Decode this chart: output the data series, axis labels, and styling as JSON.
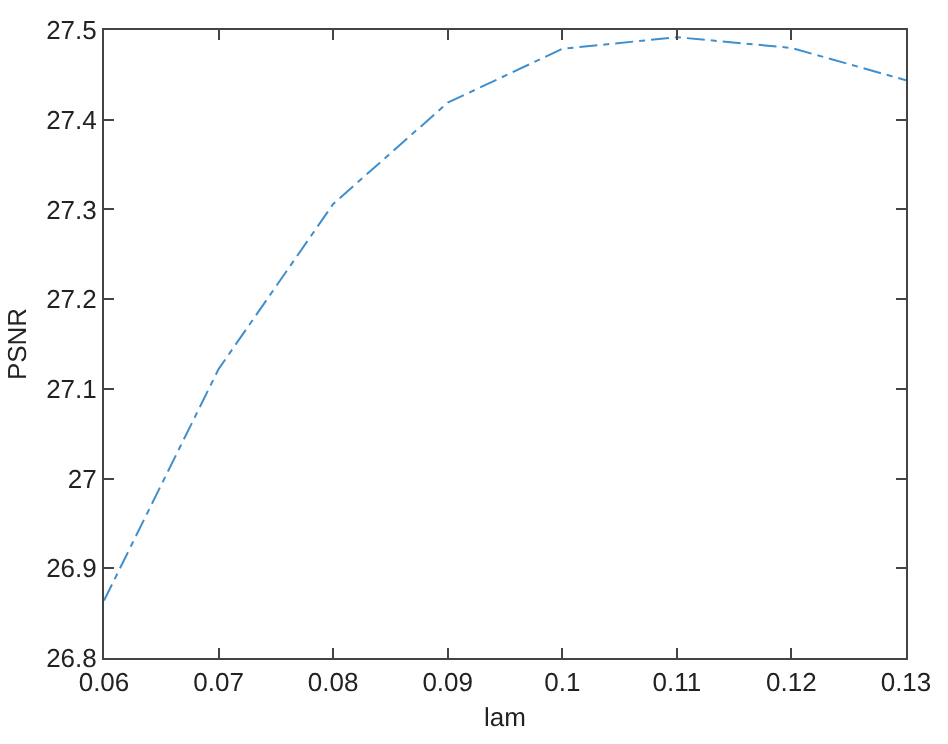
{
  "chart_data": {
    "type": "line",
    "xlabel": "lam",
    "ylabel": "PSNR",
    "x": [
      0.06,
      0.07,
      0.08,
      0.09,
      0.1,
      0.11,
      0.12,
      0.13
    ],
    "series": [
      {
        "color": "#3f8fcc",
        "values": [
          26.864,
          27.122,
          27.306,
          27.419,
          27.479,
          27.492,
          27.48,
          27.444
        ]
      }
    ],
    "xlim": [
      0.06,
      0.13
    ],
    "xticks": [
      0.06,
      0.07,
      0.08,
      0.09,
      0.1,
      0.11,
      0.12,
      0.13
    ],
    "ylim": [
      26.8,
      27.5
    ],
    "yticks": [
      26.8,
      26.9,
      27,
      27.1,
      27.2,
      27.3,
      27.4,
      27.5
    ],
    "grid": false,
    "marker": "none",
    "line_style": "dashdot"
  }
}
